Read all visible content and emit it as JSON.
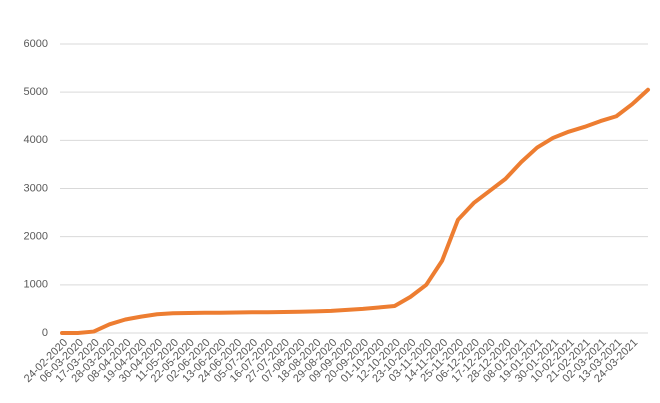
{
  "chart_data": {
    "type": "line",
    "categories": [
      "24-02-2020",
      "06-03-2020",
      "17-03-2020",
      "28-03-2020",
      "08-04-2020",
      "19-04-2020",
      "30-04-2020",
      "11-05-2020",
      "22-05-2020",
      "02-06-2020",
      "13-06-2020",
      "24-06-2020",
      "05-07-2020",
      "16-07-2020",
      "27-07-2020",
      "07-08-2020",
      "18-08-2020",
      "29-08-2020",
      "09-09-2020",
      "20-09-2020",
      "01-10-2020",
      "12-10-2020",
      "23-10-2020",
      "03-11-2020",
      "14-11-2020",
      "25-11-2020",
      "06-12-2020",
      "17-12-2020",
      "28-12-2020",
      "08-01-2021",
      "19-01-2021",
      "30-01-2021",
      "10-02-2021",
      "21-02-2021",
      "02-03-2021",
      "13-03-2021",
      "24-03-2021",
      null
    ],
    "values": [
      0,
      0,
      30,
      180,
      280,
      340,
      390,
      410,
      415,
      420,
      420,
      425,
      430,
      430,
      435,
      440,
      450,
      460,
      480,
      500,
      530,
      560,
      750,
      1000,
      1500,
      2350,
      2700,
      2950,
      3200,
      3550,
      3850,
      4050,
      4180,
      4280,
      4400,
      4500,
      4750,
      5050
    ],
    "color": "#ed7d31",
    "ylim": [
      0,
      6000
    ],
    "yticks": [
      0,
      1000,
      2000,
      3000,
      4000,
      5000,
      6000
    ],
    "grid": true
  }
}
